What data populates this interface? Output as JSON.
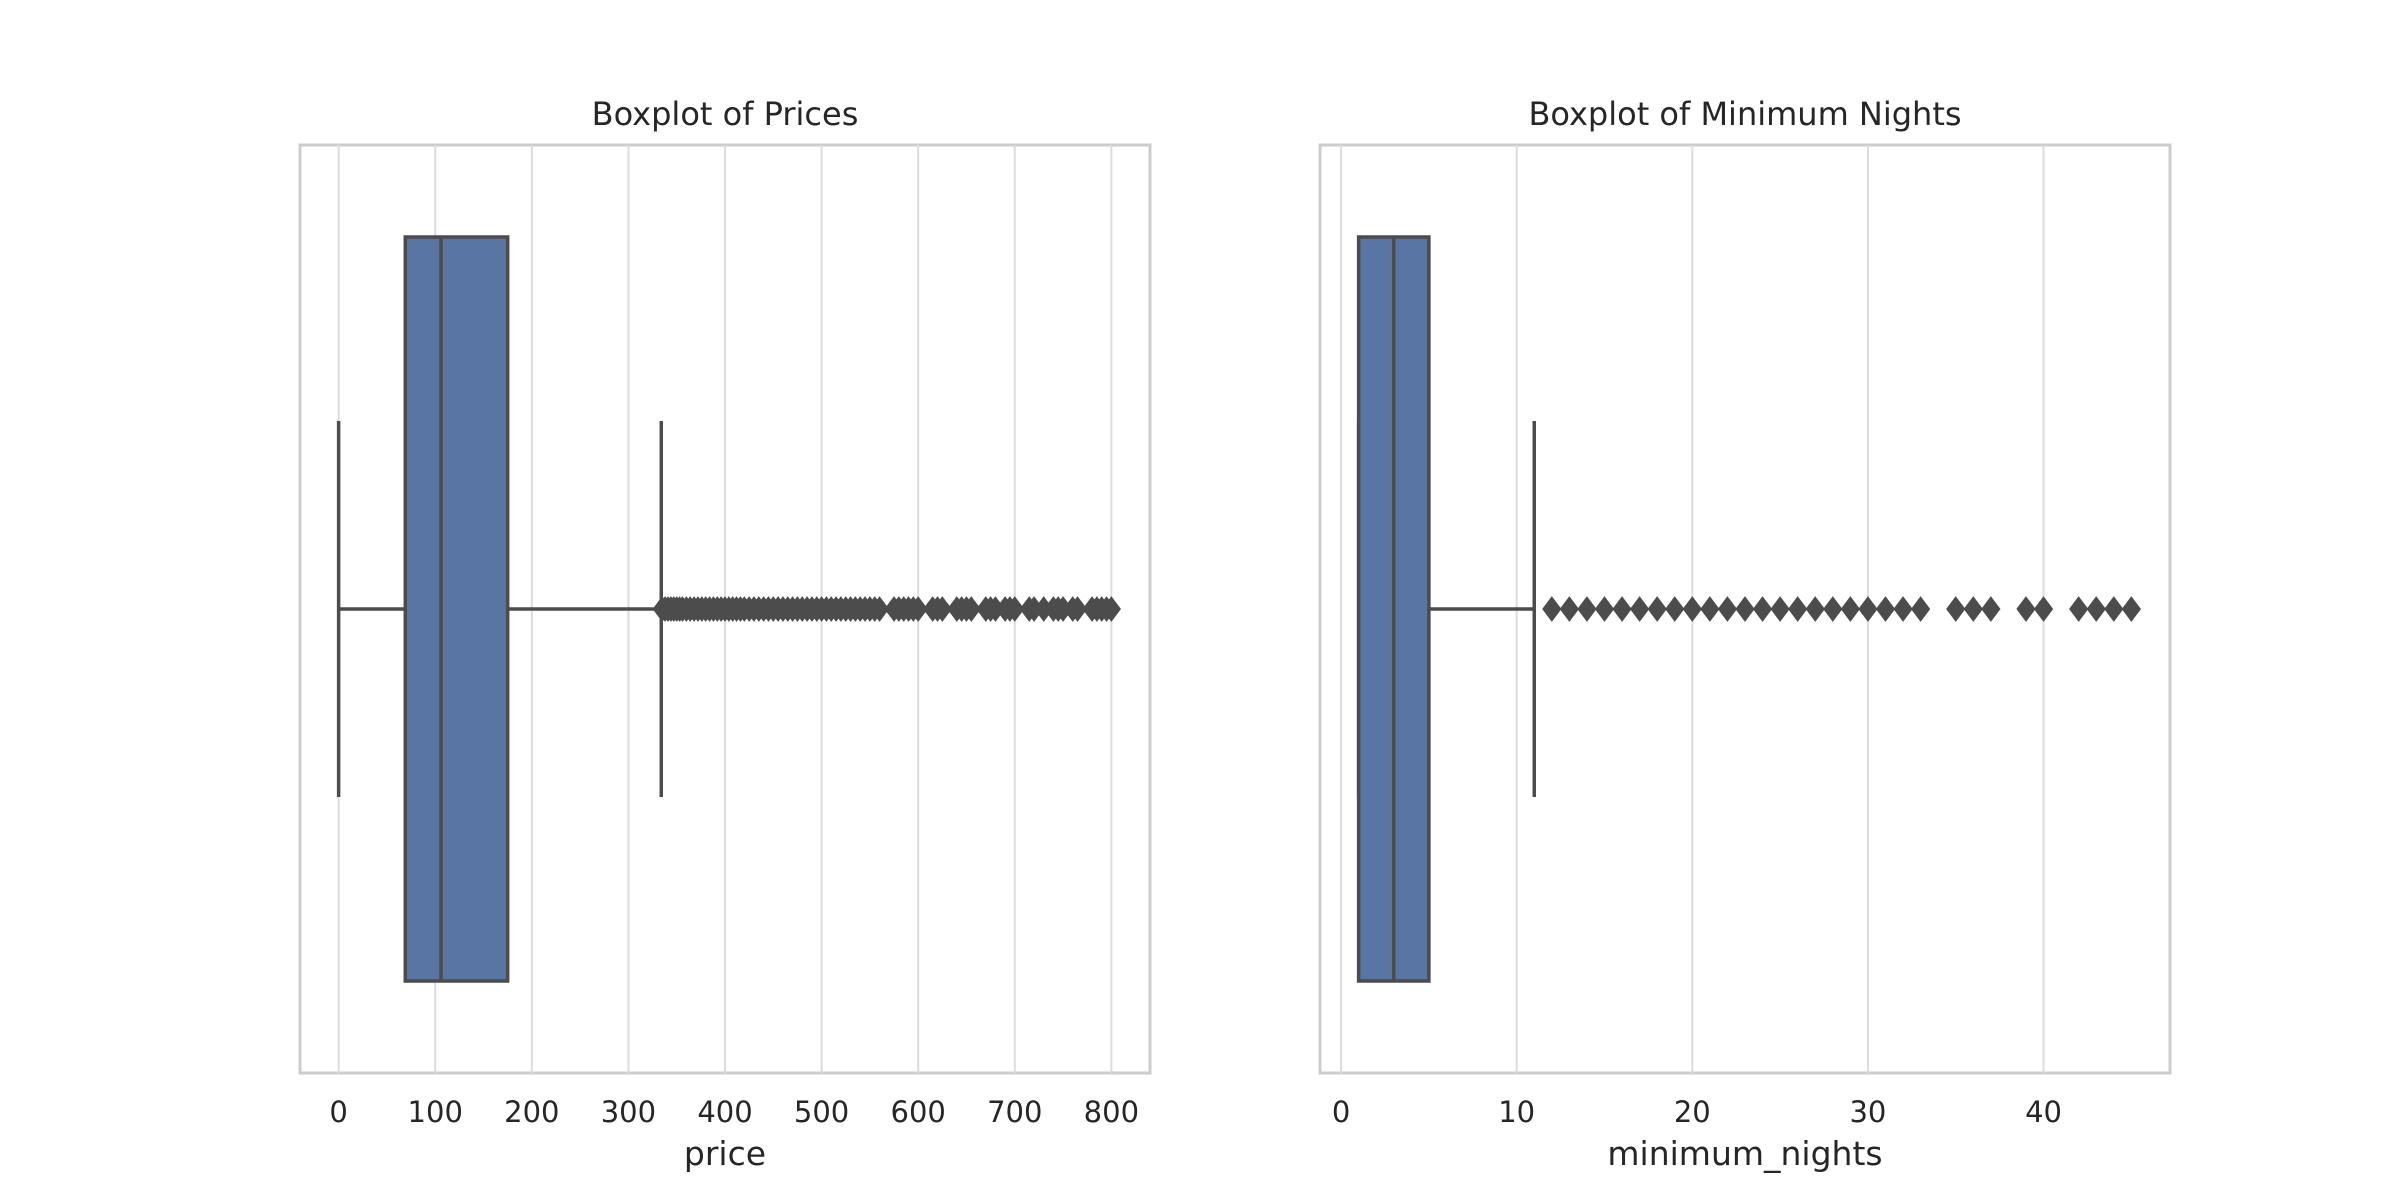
{
  "chart_data": [
    {
      "type": "boxplot",
      "title": "Boxplot of Prices",
      "xlabel": "price",
      "ylabel": "",
      "orientation": "horizontal",
      "xlim": [
        -40,
        840
      ],
      "ticks": [
        0,
        100,
        200,
        300,
        400,
        500,
        600,
        700,
        800
      ],
      "grid": true,
      "box": {
        "whisker_low": 0,
        "q1": 69,
        "median": 106,
        "q3": 175,
        "whisker_high": 334
      },
      "outliers": [
        335,
        338,
        341,
        344,
        347,
        350,
        353,
        356,
        360,
        364,
        368,
        372,
        376,
        380,
        384,
        388,
        392,
        396,
        400,
        404,
        408,
        412,
        416,
        420,
        425,
        430,
        435,
        440,
        445,
        450,
        455,
        460,
        465,
        470,
        475,
        480,
        485,
        490,
        495,
        500,
        505,
        510,
        515,
        520,
        525,
        530,
        535,
        540,
        545,
        550,
        555,
        560,
        575,
        580,
        585,
        590,
        595,
        600,
        615,
        620,
        625,
        640,
        645,
        650,
        655,
        670,
        675,
        680,
        690,
        695,
        700,
        715,
        720,
        730,
        740,
        745,
        750,
        760,
        765,
        780,
        785,
        790,
        795,
        800
      ],
      "colors": {
        "box": "#5875a4",
        "line": "#4c4c4c",
        "grid": "#dcdcdc",
        "frame": "#cccccc"
      }
    },
    {
      "type": "boxplot",
      "title": "Boxplot of Minimum Nights",
      "xlabel": "minimum_nights",
      "ylabel": "",
      "orientation": "horizontal",
      "xlim": [
        -1.2,
        47.2
      ],
      "ticks": [
        0,
        10,
        20,
        30,
        40
      ],
      "grid": true,
      "box": {
        "whisker_low": 1,
        "q1": 1,
        "median": 3,
        "q3": 5,
        "whisker_high": 11
      },
      "outliers": [
        12,
        13,
        14,
        15,
        16,
        17,
        18,
        19,
        20,
        21,
        22,
        23,
        24,
        25,
        26,
        27,
        28,
        29,
        30,
        31,
        32,
        33,
        35,
        36,
        37,
        39,
        40,
        42,
        43,
        44,
        45
      ],
      "colors": {
        "box": "#5875a4",
        "line": "#4c4c4c",
        "grid": "#dcdcdc",
        "frame": "#cccccc"
      }
    }
  ]
}
